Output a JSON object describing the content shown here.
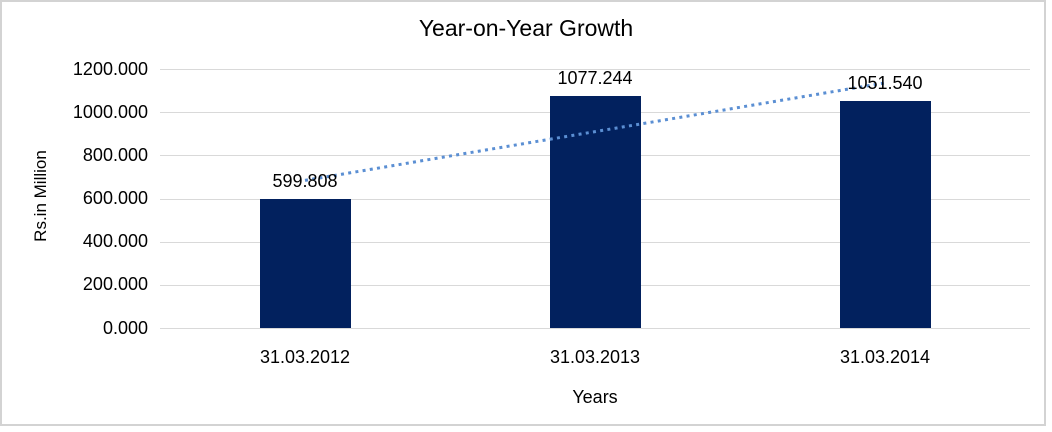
{
  "chart_data": {
    "type": "bar",
    "title": "Year-on-Year Growth",
    "xlabel": "Years",
    "ylabel": "Rs.in Million",
    "categories": [
      "31.03.2012",
      "31.03.2013",
      "31.03.2014"
    ],
    "values": [
      599.808,
      1077.244,
      1051.54
    ],
    "data_labels": [
      "599.808",
      "1077.244",
      "1051.540"
    ],
    "yticks": [
      {
        "value": 1200,
        "label": "1200.000"
      },
      {
        "value": 1000,
        "label": "1000.000"
      },
      {
        "value": 800,
        "label": "800.000"
      },
      {
        "value": 600,
        "label": "600.000"
      },
      {
        "value": 400,
        "label": "400.000"
      },
      {
        "value": 200,
        "label": "200.000"
      },
      {
        "value": 0,
        "label": "0.000"
      }
    ],
    "ylim": [
      0,
      1200
    ],
    "grid": true,
    "legend_position": "none",
    "trendline": {
      "type": "linear",
      "style": "dotted",
      "start_value": 683.7,
      "end_value": 1135.4
    },
    "colors": {
      "bar": "#02215E",
      "trendline": "#5B8FD3",
      "gridline": "#D9D9D9",
      "frame": "#D3D3D3",
      "text": "#000000",
      "background": "#FFFFFF"
    }
  }
}
